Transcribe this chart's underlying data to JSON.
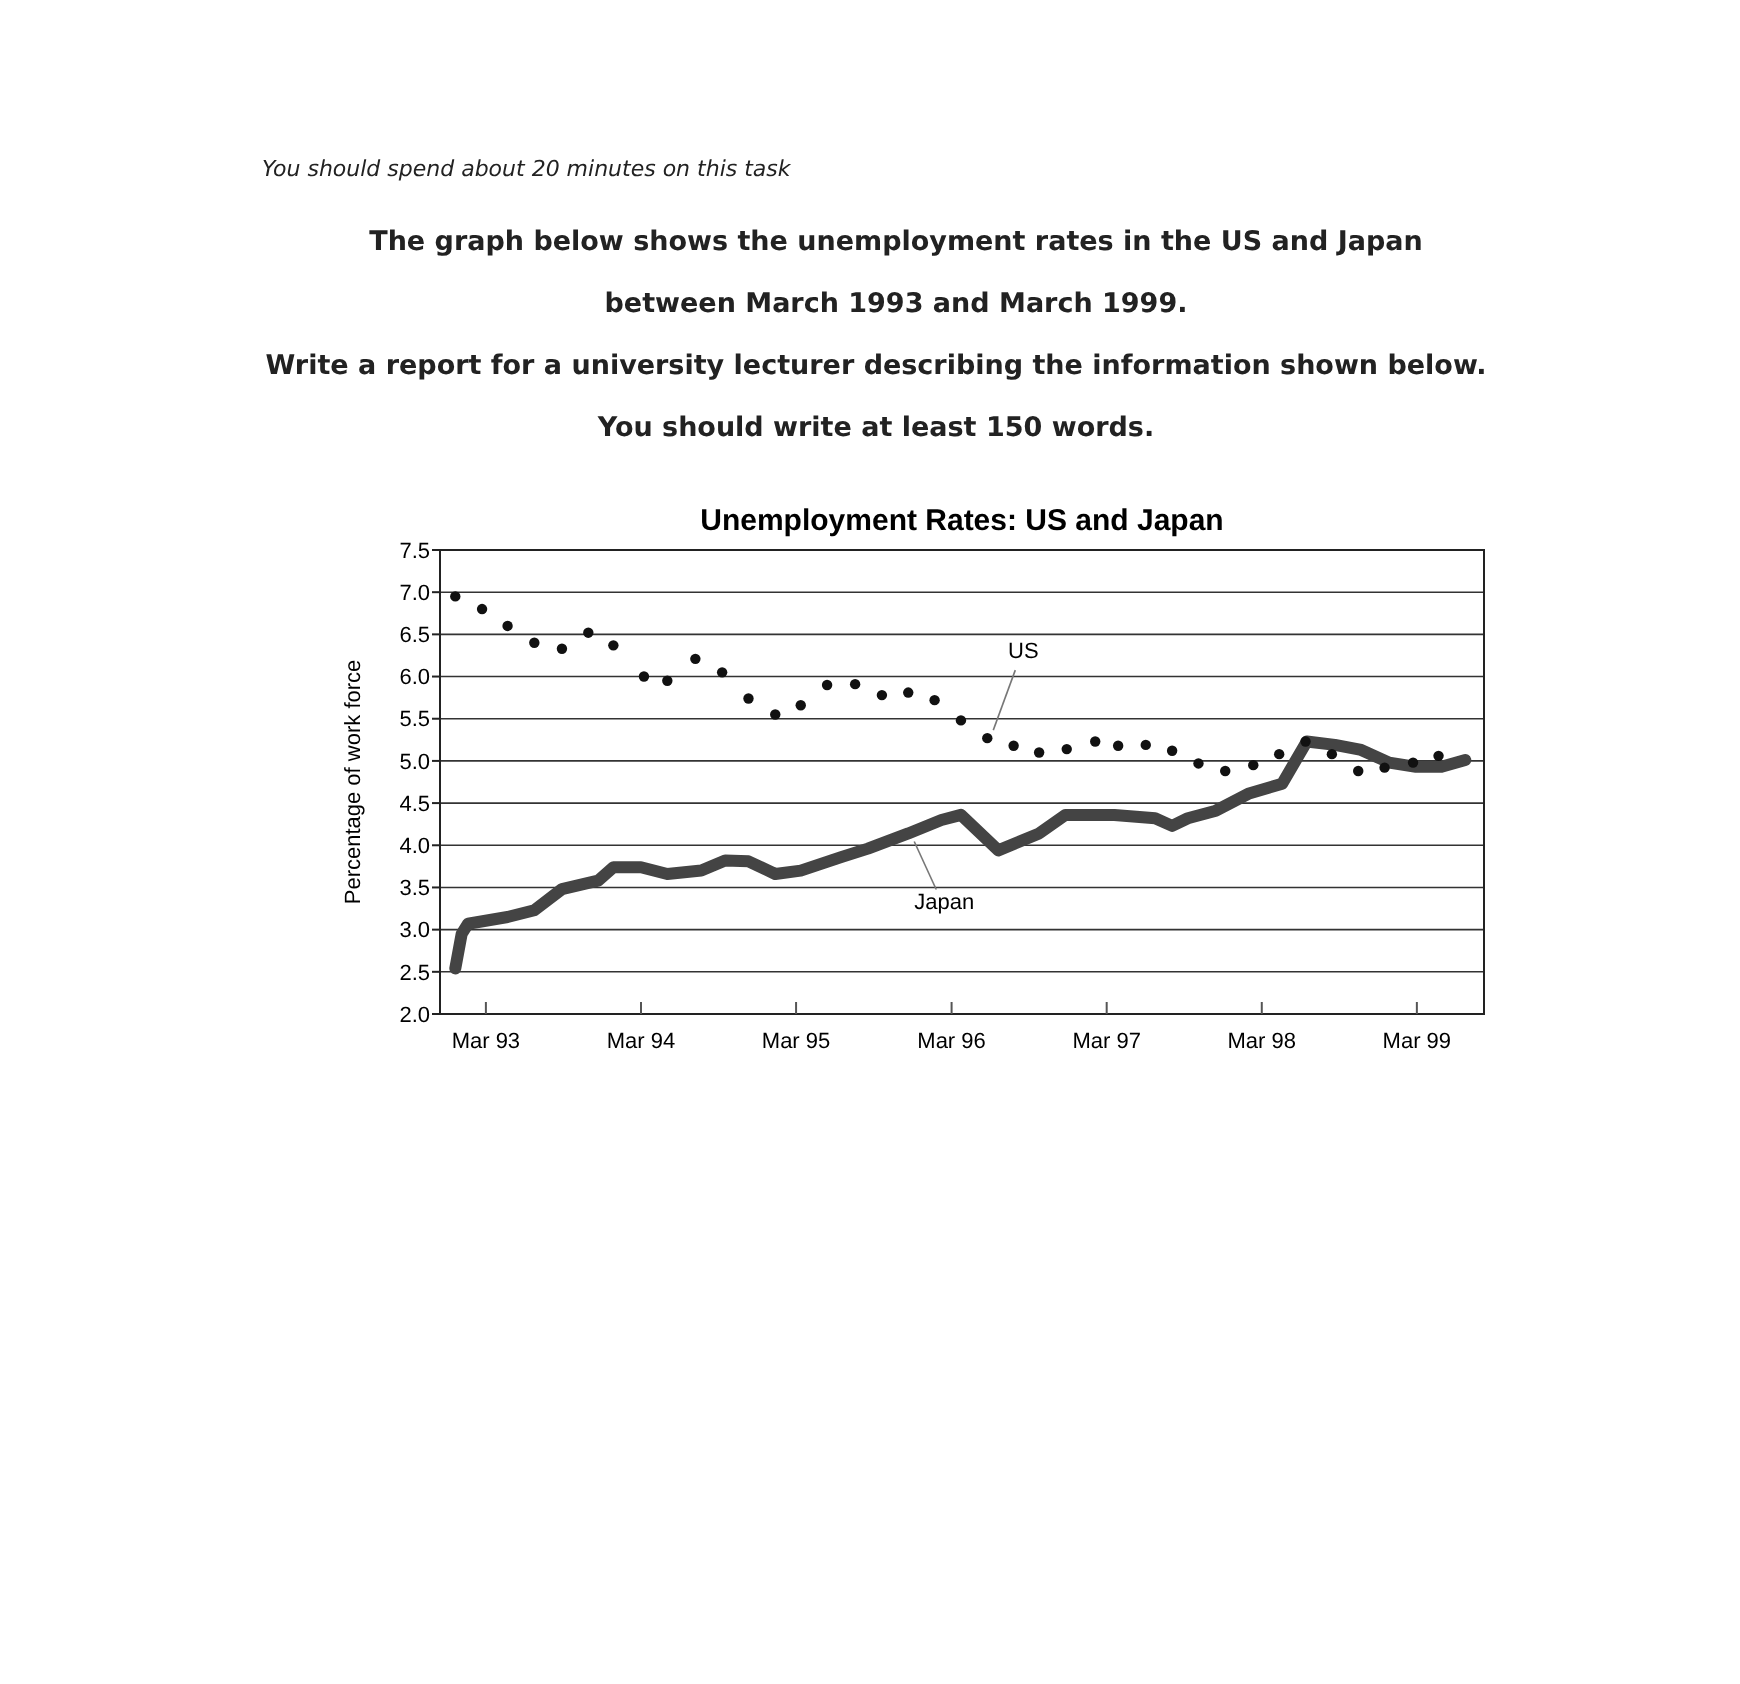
{
  "chart_data": {
    "type": "line",
    "title": "Unemployment Rates: US and Japan",
    "ylabel": "Percentage of work force",
    "annotations": [
      "You should spend about 20 minutes on this task",
      "The graph below shows the unemployment rates in the US and Japan between March 1993 and March 1999.",
      "Write a report for a university lecturer describing the information shown below. You should write at least 150 words."
    ],
    "xlim": [
      "1992-11-13",
      "1999-08-06"
    ],
    "xticks": [
      {
        "value": "1993-03",
        "label": "Mar 93"
      },
      {
        "value": "1994-03",
        "label": "Mar 94"
      },
      {
        "value": "1995-03",
        "label": "Mar 95"
      },
      {
        "value": "1996-03",
        "label": "Mar 96"
      },
      {
        "value": "1997-03",
        "label": "Mar 97"
      },
      {
        "value": "1998-03",
        "label": "Mar 98"
      },
      {
        "value": "1999-03",
        "label": "Mar 99"
      }
    ],
    "ylim": [
      2.0,
      7.5
    ],
    "yticks": [
      {
        "value": 2.0,
        "label": "2.0"
      },
      {
        "value": 2.5,
        "label": "2.5"
      },
      {
        "value": 3.0,
        "label": "3.0"
      },
      {
        "value": 3.5,
        "label": "3.5"
      },
      {
        "value": 4.0,
        "label": "4.0"
      },
      {
        "value": 4.5,
        "label": "4.5"
      },
      {
        "value": 5.0,
        "label": "5.0"
      },
      {
        "value": 5.5,
        "label": "5.5"
      },
      {
        "value": 6.0,
        "label": "6.0"
      },
      {
        "value": 6.5,
        "label": "6.5"
      },
      {
        "value": 7.0,
        "label": "7.0"
      },
      {
        "value": 7.5,
        "label": "7.5"
      }
    ],
    "grid": "y",
    "series": [
      {
        "name": "US",
        "type": "scatter",
        "marker": "circle",
        "color": "#111111",
        "x": [
          "1992-12-19",
          "1993-02-20",
          "1993-04-21",
          "1993-06-23",
          "1993-08-27",
          "1993-10-28",
          "1993-12-26",
          "1994-03-08",
          "1994-05-02",
          "1994-07-07",
          "1994-09-08",
          "1994-11-09",
          "1995-01-11",
          "1995-03-12",
          "1995-05-13",
          "1995-07-18",
          "1995-09-19",
          "1995-11-20",
          "1996-01-21",
          "1996-03-23",
          "1996-05-24",
          "1996-07-25",
          "1996-09-23",
          "1996-11-27",
          "1997-02-02",
          "1997-03-28",
          "1997-06-01",
          "1997-08-02",
          "1997-10-03",
          "1997-12-05",
          "1998-02-09",
          "1998-04-11",
          "1998-06-12",
          "1998-08-13",
          "1998-10-14",
          "1998-12-15",
          "1999-02-20",
          "1999-04-21"
        ],
        "values": [
          6.95,
          6.8,
          6.6,
          6.4,
          6.33,
          6.52,
          6.37,
          6.0,
          5.95,
          6.21,
          6.05,
          5.74,
          5.55,
          5.66,
          5.9,
          5.91,
          5.78,
          5.81,
          5.72,
          5.48,
          5.27,
          5.18,
          5.1,
          5.14,
          5.23,
          5.18,
          5.19,
          5.12,
          4.97,
          4.88,
          4.95,
          5.08,
          5.23,
          5.08,
          4.88,
          4.92,
          4.98,
          5.06
        ]
      },
      {
        "name": "Japan",
        "type": "line",
        "marker": "none",
        "line_style": "solid",
        "color": "#444444",
        "x": [
          "1992-12-19",
          "1993-01-03",
          "1993-01-18",
          "1993-04-21",
          "1993-06-23",
          "1993-08-27",
          "1993-11-20",
          "1993-12-26",
          "1994-03-01",
          "1994-05-02",
          "1994-07-21",
          "1994-09-15",
          "1994-11-09",
          "1995-01-11",
          "1995-03-12",
          "1995-06-15",
          "1995-08-17",
          "1995-11-20",
          "1996-02-06",
          "1996-03-23",
          "1996-06-19",
          "1996-09-23",
          "1996-11-24",
          "1997-03-19",
          "1997-06-23",
          "1997-08-02",
          "1997-09-08",
          "1997-11-13",
          "1998-01-28",
          "1998-04-18",
          "1998-06-15",
          "1998-08-20",
          "1998-10-21",
          "1998-12-26",
          "1999-02-27",
          "1999-04-28",
          "1999-06-23"
        ],
        "values": [
          2.54,
          2.95,
          3.07,
          3.15,
          3.23,
          3.48,
          3.58,
          3.74,
          3.74,
          3.66,
          3.7,
          3.82,
          3.81,
          3.66,
          3.7,
          3.86,
          3.96,
          4.14,
          4.3,
          4.36,
          3.94,
          4.14,
          4.36,
          4.36,
          4.32,
          4.23,
          4.32,
          4.41,
          4.61,
          4.73,
          5.23,
          5.19,
          5.13,
          4.98,
          4.93,
          4.93,
          5.01
        ]
      }
    ]
  }
}
